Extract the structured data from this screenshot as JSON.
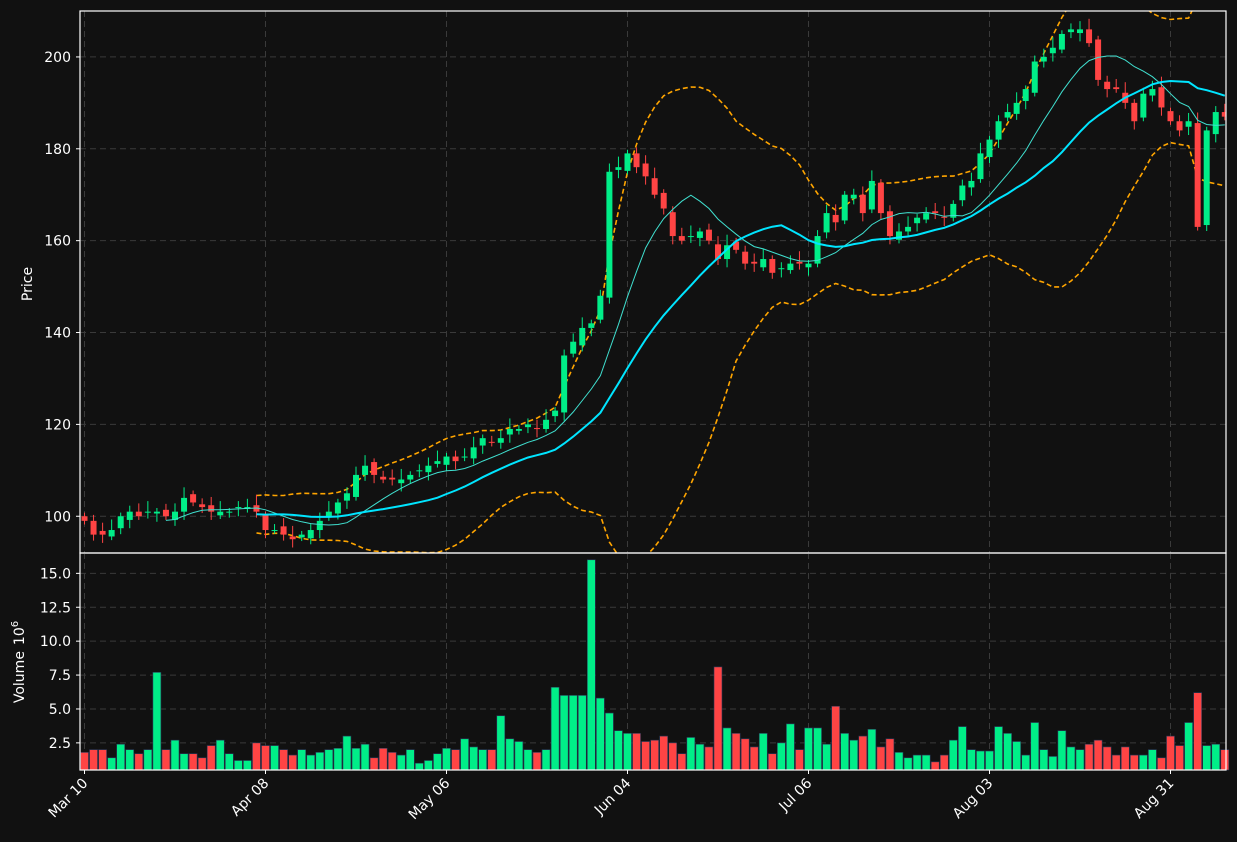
{
  "chart_data": {
    "type": "candlestick",
    "colors": {
      "background": "#111111",
      "up": "#00ee88",
      "down": "#ff4444",
      "bollinger": "#ffa500",
      "ma_fast": "#40e0d0",
      "ma_slow": "#00e5ff",
      "grid": "#3a3a3a",
      "frame": "#ffffff"
    },
    "price_panel": {
      "ylabel": "Price",
      "ylim": [
        92,
        210
      ],
      "yticks": [
        100,
        120,
        140,
        160,
        180,
        200
      ]
    },
    "volume_panel": {
      "ylabel": "Volume",
      "ylabel_exponent": "6",
      "ylim": [
        0.5,
        16.5
      ],
      "yticks": [
        "2.5",
        "5.0",
        "7.5",
        "10.0",
        "12.5",
        "15.0"
      ]
    },
    "xticks": [
      {
        "index": 0,
        "label": "Mar 10"
      },
      {
        "index": 20,
        "label": "Apr 08"
      },
      {
        "index": 40,
        "label": "May 06"
      },
      {
        "index": 60,
        "label": "Jun 04"
      },
      {
        "index": 80,
        "label": "Jul 06"
      },
      {
        "index": 100,
        "label": "Aug 03"
      },
      {
        "index": 120,
        "label": "Aug 31"
      }
    ],
    "bar_count": 127,
    "ohlc_anchors": [
      [
        0,
        99
      ],
      [
        1,
        96
      ],
      [
        2,
        96
      ],
      [
        3,
        97
      ],
      [
        4,
        100
      ],
      [
        5,
        101
      ],
      [
        6,
        100
      ],
      [
        7,
        101
      ],
      [
        8,
        101
      ],
      [
        9,
        100
      ],
      [
        10,
        101
      ],
      [
        11,
        104
      ],
      [
        12,
        103
      ],
      [
        13,
        102
      ],
      [
        14,
        101
      ],
      [
        15,
        101
      ],
      [
        16,
        101
      ],
      [
        17,
        102
      ],
      [
        18,
        102
      ],
      [
        19,
        101
      ],
      [
        20,
        97
      ],
      [
        21,
        97
      ],
      [
        22,
        96
      ],
      [
        23,
        95
      ],
      [
        24,
        96
      ],
      [
        25,
        97
      ],
      [
        26,
        99
      ],
      [
        27,
        101
      ],
      [
        28,
        103
      ],
      [
        29,
        105
      ],
      [
        30,
        109
      ],
      [
        31,
        111
      ],
      [
        32,
        109
      ],
      [
        33,
        108
      ],
      [
        34,
        108
      ],
      [
        35,
        108
      ],
      [
        36,
        109
      ],
      [
        37,
        110
      ],
      [
        38,
        111
      ],
      [
        39,
        112
      ],
      [
        40,
        113
      ],
      [
        41,
        112
      ],
      [
        42,
        113
      ],
      [
        43,
        115
      ],
      [
        44,
        117
      ],
      [
        45,
        116
      ],
      [
        46,
        117
      ],
      [
        47,
        119
      ],
      [
        48,
        119
      ],
      [
        49,
        120
      ],
      [
        50,
        119
      ],
      [
        51,
        121
      ],
      [
        52,
        123
      ],
      [
        53,
        135
      ],
      [
        54,
        138
      ],
      [
        55,
        141
      ],
      [
        56,
        142
      ],
      [
        57,
        148
      ],
      [
        58,
        175
      ],
      [
        59,
        176
      ],
      [
        60,
        179
      ],
      [
        61,
        176
      ],
      [
        62,
        174
      ],
      [
        63,
        170
      ],
      [
        64,
        167
      ],
      [
        65,
        161
      ],
      [
        66,
        160
      ],
      [
        67,
        161
      ],
      [
        68,
        162
      ],
      [
        69,
        160
      ],
      [
        70,
        156
      ],
      [
        71,
        159
      ],
      [
        72,
        158
      ],
      [
        73,
        155
      ],
      [
        74,
        155
      ],
      [
        75,
        156
      ],
      [
        76,
        153
      ],
      [
        77,
        154
      ],
      [
        78,
        155
      ],
      [
        79,
        155
      ],
      [
        80,
        155
      ],
      [
        81,
        161
      ],
      [
        82,
        166
      ],
      [
        83,
        164
      ],
      [
        84,
        170
      ],
      [
        85,
        170
      ],
      [
        86,
        166
      ],
      [
        87,
        173
      ],
      [
        88,
        166
      ],
      [
        89,
        161
      ],
      [
        90,
        162
      ],
      [
        91,
        163
      ],
      [
        92,
        165
      ],
      [
        93,
        166
      ],
      [
        94,
        166
      ],
      [
        95,
        165
      ],
      [
        96,
        168
      ],
      [
        97,
        172
      ],
      [
        98,
        173
      ],
      [
        99,
        179
      ],
      [
        100,
        182
      ],
      [
        101,
        186
      ],
      [
        102,
        188
      ],
      [
        103,
        190
      ],
      [
        104,
        193
      ],
      [
        105,
        199
      ],
      [
        106,
        200
      ],
      [
        107,
        202
      ],
      [
        108,
        205
      ],
      [
        109,
        206
      ],
      [
        110,
        206
      ],
      [
        111,
        203
      ],
      [
        112,
        195
      ],
      [
        113,
        193
      ],
      [
        114,
        193
      ],
      [
        115,
        190
      ],
      [
        116,
        186
      ],
      [
        117,
        192
      ],
      [
        118,
        193
      ],
      [
        119,
        189
      ],
      [
        120,
        186
      ],
      [
        121,
        184
      ],
      [
        122,
        186
      ],
      [
        123,
        163
      ],
      [
        124,
        184
      ],
      [
        125,
        188
      ],
      [
        126,
        187
      ]
    ],
    "spike_volumes": [
      [
        0,
        1.8
      ],
      [
        1,
        2.0
      ],
      [
        2,
        2.0
      ],
      [
        3,
        1.4
      ],
      [
        4,
        2.4
      ],
      [
        5,
        2.0
      ],
      [
        6,
        1.7
      ],
      [
        7,
        2.0
      ],
      [
        8,
        7.7
      ],
      [
        9,
        2.0
      ],
      [
        10,
        2.7
      ],
      [
        11,
        1.7
      ],
      [
        12,
        1.7
      ],
      [
        13,
        1.4
      ],
      [
        14,
        2.3
      ],
      [
        15,
        2.7
      ],
      [
        16,
        1.7
      ],
      [
        17,
        1.2
      ],
      [
        18,
        1.2
      ],
      [
        19,
        2.5
      ],
      [
        20,
        2.3
      ],
      [
        21,
        2.3
      ],
      [
        22,
        2.0
      ],
      [
        23,
        1.6
      ],
      [
        24,
        2.0
      ],
      [
        25,
        1.6
      ],
      [
        26,
        1.8
      ],
      [
        27,
        2.0
      ],
      [
        28,
        2.1
      ],
      [
        29,
        3.0
      ],
      [
        30,
        2.1
      ],
      [
        31,
        2.4
      ],
      [
        32,
        1.4
      ],
      [
        33,
        2.1
      ],
      [
        34,
        1.8
      ],
      [
        35,
        1.6
      ],
      [
        36,
        2.0
      ],
      [
        37,
        1.0
      ],
      [
        38,
        1.2
      ],
      [
        39,
        1.7
      ],
      [
        40,
        2.1
      ],
      [
        41,
        2.0
      ],
      [
        42,
        2.8
      ],
      [
        43,
        2.2
      ],
      [
        44,
        2.0
      ],
      [
        45,
        2.0
      ],
      [
        46,
        4.5
      ],
      [
        47,
        2.8
      ],
      [
        48,
        2.6
      ],
      [
        49,
        2.0
      ],
      [
        50,
        1.8
      ],
      [
        51,
        2.0
      ],
      [
        52,
        6.6
      ],
      [
        53,
        6.0
      ],
      [
        54,
        6.0
      ],
      [
        55,
        6.0
      ],
      [
        56,
        16.0
      ],
      [
        57,
        5.8
      ],
      [
        58,
        4.7
      ],
      [
        59,
        3.4
      ],
      [
        60,
        3.2
      ],
      [
        61,
        3.2
      ],
      [
        62,
        2.6
      ],
      [
        63,
        2.7
      ],
      [
        64,
        3.0
      ],
      [
        65,
        2.5
      ],
      [
        66,
        1.7
      ],
      [
        67,
        2.9
      ],
      [
        68,
        2.4
      ],
      [
        69,
        2.2
      ],
      [
        70,
        8.1
      ],
      [
        71,
        3.6
      ],
      [
        72,
        3.2
      ],
      [
        73,
        2.8
      ],
      [
        74,
        2.2
      ],
      [
        75,
        3.2
      ],
      [
        76,
        1.7
      ],
      [
        77,
        2.5
      ],
      [
        78,
        3.9
      ],
      [
        79,
        2.0
      ],
      [
        80,
        3.6
      ],
      [
        81,
        3.6
      ],
      [
        82,
        2.4
      ],
      [
        83,
        5.2
      ],
      [
        84,
        3.2
      ],
      [
        85,
        2.7
      ],
      [
        86,
        3.0
      ],
      [
        87,
        3.5
      ],
      [
        88,
        2.2
      ],
      [
        89,
        2.8
      ],
      [
        90,
        1.8
      ],
      [
        91,
        1.4
      ],
      [
        92,
        1.6
      ],
      [
        93,
        1.6
      ],
      [
        94,
        1.1
      ],
      [
        95,
        1.6
      ],
      [
        96,
        2.7
      ],
      [
        97,
        3.7
      ],
      [
        98,
        2.0
      ],
      [
        99,
        1.9
      ],
      [
        100,
        1.9
      ],
      [
        101,
        3.7
      ],
      [
        102,
        3.2
      ],
      [
        103,
        2.6
      ],
      [
        104,
        1.6
      ],
      [
        105,
        4.0
      ],
      [
        106,
        2.0
      ],
      [
        107,
        1.5
      ],
      [
        108,
        3.4
      ],
      [
        109,
        2.2
      ],
      [
        110,
        2.0
      ],
      [
        111,
        2.4
      ],
      [
        112,
        2.7
      ],
      [
        113,
        2.2
      ],
      [
        114,
        1.6
      ],
      [
        115,
        2.2
      ],
      [
        116,
        1.6
      ],
      [
        117,
        1.6
      ],
      [
        118,
        2.0
      ],
      [
        119,
        1.4
      ],
      [
        120,
        3.0
      ],
      [
        121,
        2.3
      ],
      [
        122,
        4.0
      ],
      [
        123,
        6.2
      ],
      [
        124,
        2.3
      ],
      [
        125,
        2.4
      ],
      [
        126,
        2.0
      ]
    ]
  }
}
